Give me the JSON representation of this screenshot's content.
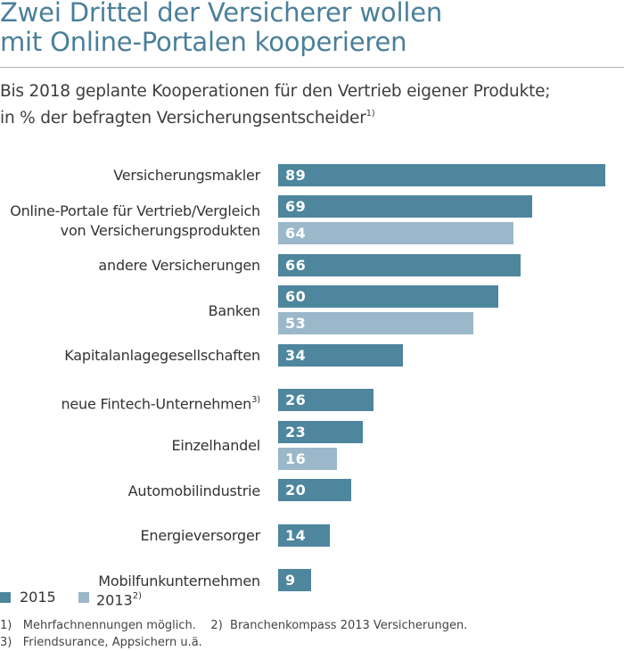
{
  "title_lines": [
    "Zwei Drittel der Versicherer wollen",
    "mit Online-Portalen kooperieren"
  ],
  "subtitle_line1": "Bis 2018 geplante Kooperationen für den Vertrieb eigener Produkte;",
  "subtitle_line2": "in % der befragten Versicherungsentscheider",
  "subtitle_sup": "1)",
  "colors": {
    "title": "#4a7f9a",
    "series_2015": "#4d869d",
    "series_2013": "#9ab8ca"
  },
  "chart_data": {
    "type": "bar",
    "orientation": "horizontal",
    "xlim": [
      0,
      89
    ],
    "grid": false,
    "legend_position": "bottom-left",
    "series": [
      {
        "name": "2015",
        "color": "#4d869d"
      },
      {
        "name": "2013",
        "name_sup": "2)",
        "color": "#9ab8ca"
      }
    ],
    "categories": [
      {
        "label_lines": [
          "Versicherungsmakler"
        ],
        "values": {
          "2015": 89
        }
      },
      {
        "label_lines": [
          "Online-Portale für Vertrieb/Vergleich",
          "von Versicherungsprodukten"
        ],
        "values": {
          "2015": 69,
          "2013": 64
        }
      },
      {
        "label_lines": [
          "andere Versicherungen"
        ],
        "values": {
          "2015": 66
        }
      },
      {
        "label_lines": [
          "Banken"
        ],
        "values": {
          "2015": 60,
          "2013": 53
        }
      },
      {
        "label_lines": [
          "Kapitalanlagegesellschaften"
        ],
        "values": {
          "2015": 34
        }
      },
      {
        "label_lines": [
          "neue Fintech-Unternehmen"
        ],
        "label_sup": "3)",
        "values": {
          "2015": 26
        }
      },
      {
        "label_lines": [
          "Einzelhandel"
        ],
        "values": {
          "2015": 23,
          "2013": 16
        }
      },
      {
        "label_lines": [
          "Automobilindustrie"
        ],
        "values": {
          "2015": 20
        }
      },
      {
        "label_lines": [
          "Energieversorger"
        ],
        "values": {
          "2015": 14
        }
      },
      {
        "label_lines": [
          "Mobilfunkunternehmen"
        ],
        "values": {
          "2015": 9
        }
      }
    ]
  },
  "footnotes": {
    "line1": "1)   Mehrfachnennungen möglich.    2)  Branchenkompass 2013 Versicherungen.",
    "line2": "3)   Friendsurance, Appsichern u.ä."
  }
}
